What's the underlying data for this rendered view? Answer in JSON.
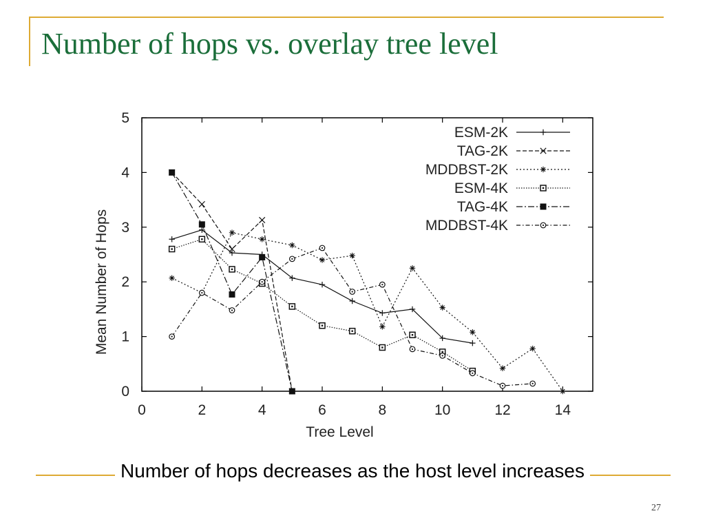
{
  "slide": {
    "title": "Number of hops vs. overlay tree level",
    "caption": "Number of hops decreases as the host level increases",
    "page_number": "27",
    "accent_color": "#DDAA33",
    "title_color": "#1B6E3A"
  },
  "chart_data": {
    "type": "line",
    "title": "",
    "xlabel": "Tree Level",
    "ylabel": "Mean Number of Hops",
    "xlim": [
      0,
      15
    ],
    "ylim": [
      0,
      5
    ],
    "xticks": [
      "0",
      "2",
      "4",
      "6",
      "8",
      "10",
      "12",
      "14"
    ],
    "yticks": [
      "0",
      "1",
      "2",
      "3",
      "4",
      "5"
    ],
    "grid": false,
    "legend_position": "top-right",
    "series": [
      {
        "name": "ESM-2K",
        "marker": "plus",
        "dash": "solid",
        "x": [
          1,
          2,
          3,
          4,
          5,
          6,
          7,
          8,
          9,
          10,
          11
        ],
        "y": [
          2.78,
          2.95,
          2.53,
          2.5,
          2.07,
          1.95,
          1.65,
          1.43,
          1.5,
          0.97,
          0.88
        ]
      },
      {
        "name": "TAG-2K",
        "marker": "cross",
        "dash": "dashed",
        "x": [
          1,
          2,
          3,
          4,
          5
        ],
        "y": [
          4.0,
          3.42,
          2.6,
          3.13,
          0.0
        ]
      },
      {
        "name": "MDDBST-2K",
        "marker": "star",
        "dash": "dotted",
        "x": [
          1,
          2,
          3,
          4,
          5,
          6,
          7,
          8,
          9,
          10,
          11,
          12,
          13,
          14
        ],
        "y": [
          2.07,
          1.8,
          2.9,
          2.78,
          2.67,
          2.4,
          2.48,
          1.18,
          2.25,
          1.53,
          1.08,
          0.42,
          0.78,
          0.0
        ]
      },
      {
        "name": "ESM-4K",
        "marker": "square-open",
        "dash": "dotted-fine",
        "x": [
          1,
          2,
          3,
          4,
          5,
          6,
          7,
          8,
          9,
          10,
          11
        ],
        "y": [
          2.6,
          2.78,
          2.23,
          1.97,
          1.55,
          1.2,
          1.1,
          0.8,
          1.03,
          0.72,
          0.37
        ]
      },
      {
        "name": "TAG-4K",
        "marker": "square-filled",
        "dash": "dash-dot",
        "x": [
          1,
          2,
          3,
          4,
          5
        ],
        "y": [
          4.0,
          3.05,
          1.77,
          2.45,
          0.0
        ]
      },
      {
        "name": "MDDBST-4K",
        "marker": "circle",
        "dash": "dash-dot-fine",
        "x": [
          1,
          2,
          3,
          4,
          5,
          6,
          7,
          8,
          9,
          10,
          11,
          12,
          13
        ],
        "y": [
          1.0,
          1.8,
          1.48,
          2.0,
          2.42,
          2.62,
          1.82,
          1.95,
          0.77,
          0.65,
          0.33,
          0.1,
          0.14
        ]
      }
    ]
  }
}
